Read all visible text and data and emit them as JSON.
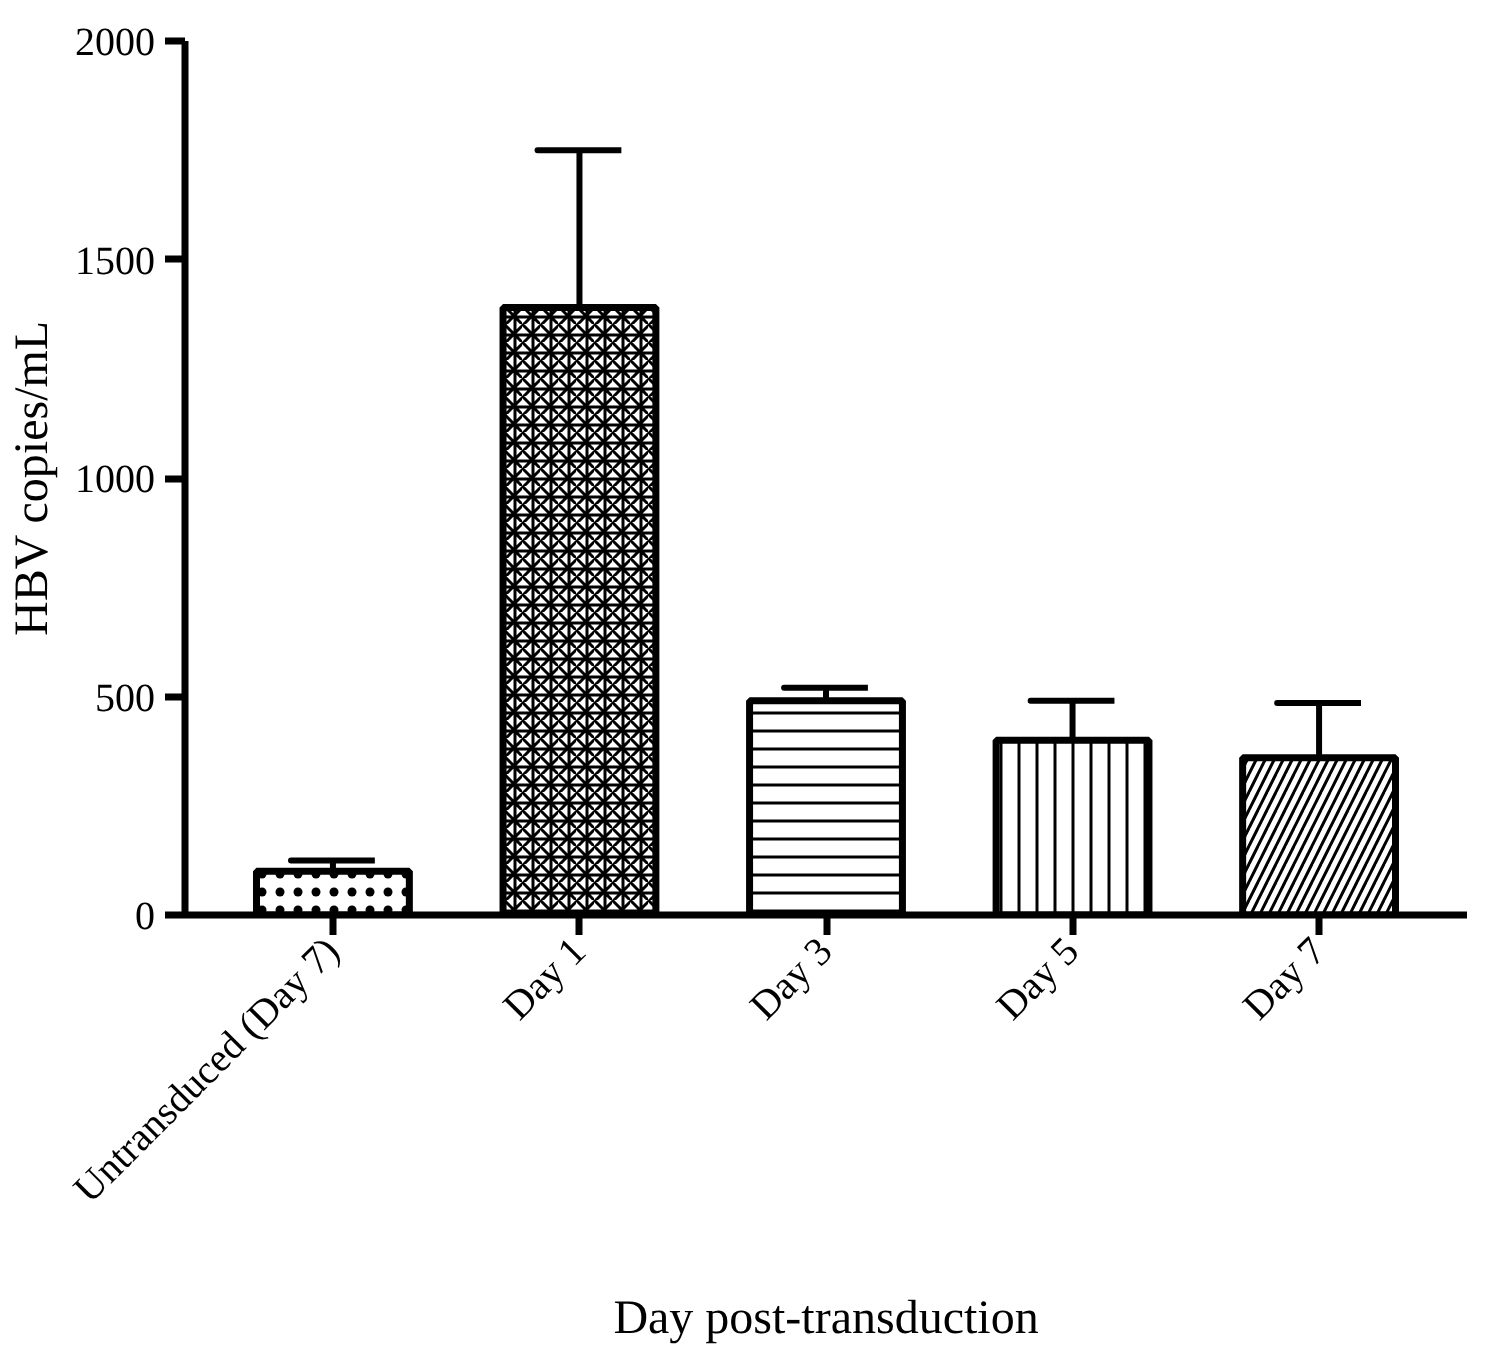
{
  "chart_data": {
    "type": "bar",
    "xlabel": "Day post-transduction",
    "ylabel": "HBV copies/mL",
    "categories": [
      "Untransduced (Day 7)",
      "Day 1",
      "Day 3",
      "Day 5",
      "Day 7"
    ],
    "values": [
      100,
      1390,
      490,
      400,
      360
    ],
    "errors": [
      [
        100,
        125
      ],
      [
        1390,
        1750
      ],
      [
        490,
        520
      ],
      [
        400,
        490
      ],
      [
        360,
        485
      ]
    ],
    "colors": [
      "#000000",
      "#000000",
      "#000000",
      "#000000",
      "#000000"
    ],
    "ylim": [
      0,
      2000
    ],
    "yticks": [
      0,
      500,
      1000,
      1500,
      2000
    ],
    "grid": false
  }
}
